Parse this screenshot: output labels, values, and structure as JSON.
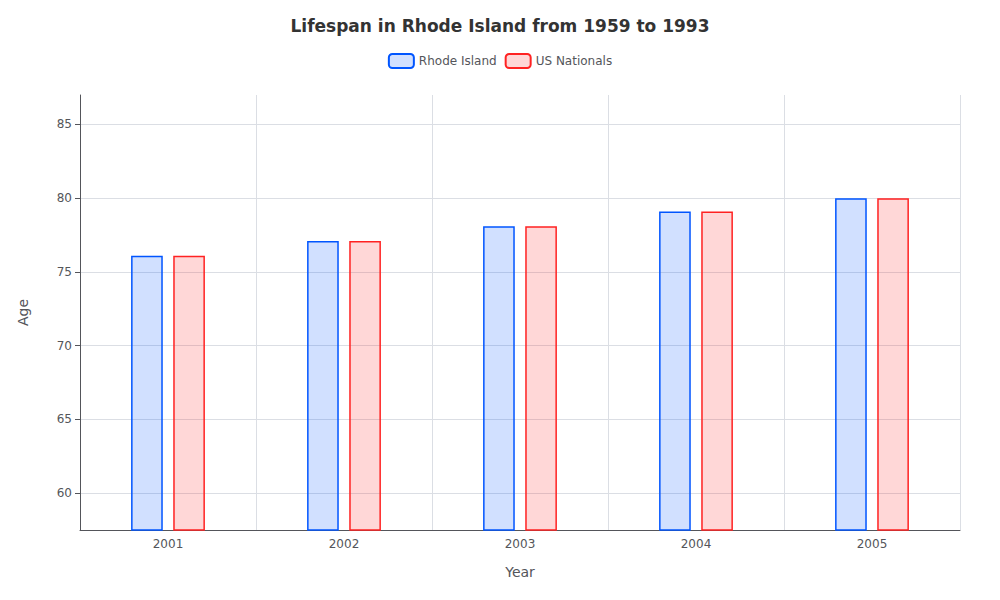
{
  "chart_data": {
    "type": "bar",
    "title": "Lifespan in Rhode Island from 1959 to 1993",
    "xlabel": "Year",
    "ylabel": "Age",
    "categories": [
      "2001",
      "2002",
      "2003",
      "2004",
      "2005"
    ],
    "series": [
      {
        "name": "Rhode Island",
        "color": "#0055ff",
        "values": [
          76.1,
          77.1,
          78.1,
          79.1,
          80.0
        ]
      },
      {
        "name": "US Nationals",
        "color": "#ff2222",
        "values": [
          76.1,
          77.1,
          78.1,
          79.1,
          80.0
        ]
      }
    ],
    "ylim": [
      57.5,
      87
    ],
    "yticks": [
      60,
      65,
      70,
      75,
      80,
      85
    ],
    "grid": true,
    "legend": "top"
  }
}
